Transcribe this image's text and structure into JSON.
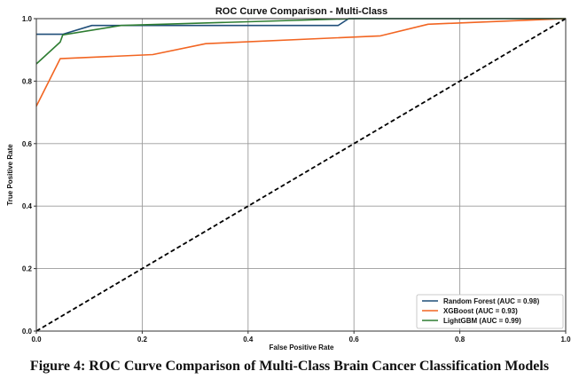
{
  "chart_data": {
    "type": "line",
    "title": "ROC Curve Comparison - Multi-Class",
    "xlabel": "False Positive Rate",
    "ylabel": "True Positive Rate",
    "xlim": [
      0.0,
      1.0
    ],
    "ylim": [
      0.0,
      1.0
    ],
    "xticks": [
      "0.0",
      "0.2",
      "0.4",
      "0.6",
      "0.8",
      "1.0"
    ],
    "yticks": [
      "0.0",
      "0.2",
      "0.4",
      "0.6",
      "0.8",
      "1.0"
    ],
    "grid": true,
    "legend_position": "bottom-right",
    "series": [
      {
        "name": "Random Forest (AUC = 0.98)",
        "color": "#1f4e79",
        "x": [
          0.0,
          0.0,
          0.05,
          0.105,
          0.57,
          0.59,
          1.0
        ],
        "y": [
          0.95,
          0.95,
          0.95,
          0.978,
          0.978,
          1.0,
          1.0
        ]
      },
      {
        "name": "XGBoost (AUC = 0.93)",
        "color": "#f26522",
        "x": [
          0.0,
          0.045,
          0.22,
          0.32,
          0.65,
          0.74,
          1.0
        ],
        "y": [
          0.72,
          0.872,
          0.885,
          0.92,
          0.945,
          0.982,
          1.0
        ]
      },
      {
        "name": "LightGBM (AUC = 0.99)",
        "color": "#2e7d32",
        "x": [
          0.0,
          0.045,
          0.05,
          0.16,
          0.6,
          1.0
        ],
        "y": [
          0.855,
          0.925,
          0.948,
          0.978,
          1.0,
          1.0
        ]
      },
      {
        "name": "",
        "color": "#000000",
        "style": "dashed",
        "x": [
          0.0,
          1.0
        ],
        "y": [
          0.0,
          1.0
        ]
      }
    ]
  },
  "caption": "Figure 4: ROC Curve Comparison of Multi-Class Brain Cancer Classification Models"
}
